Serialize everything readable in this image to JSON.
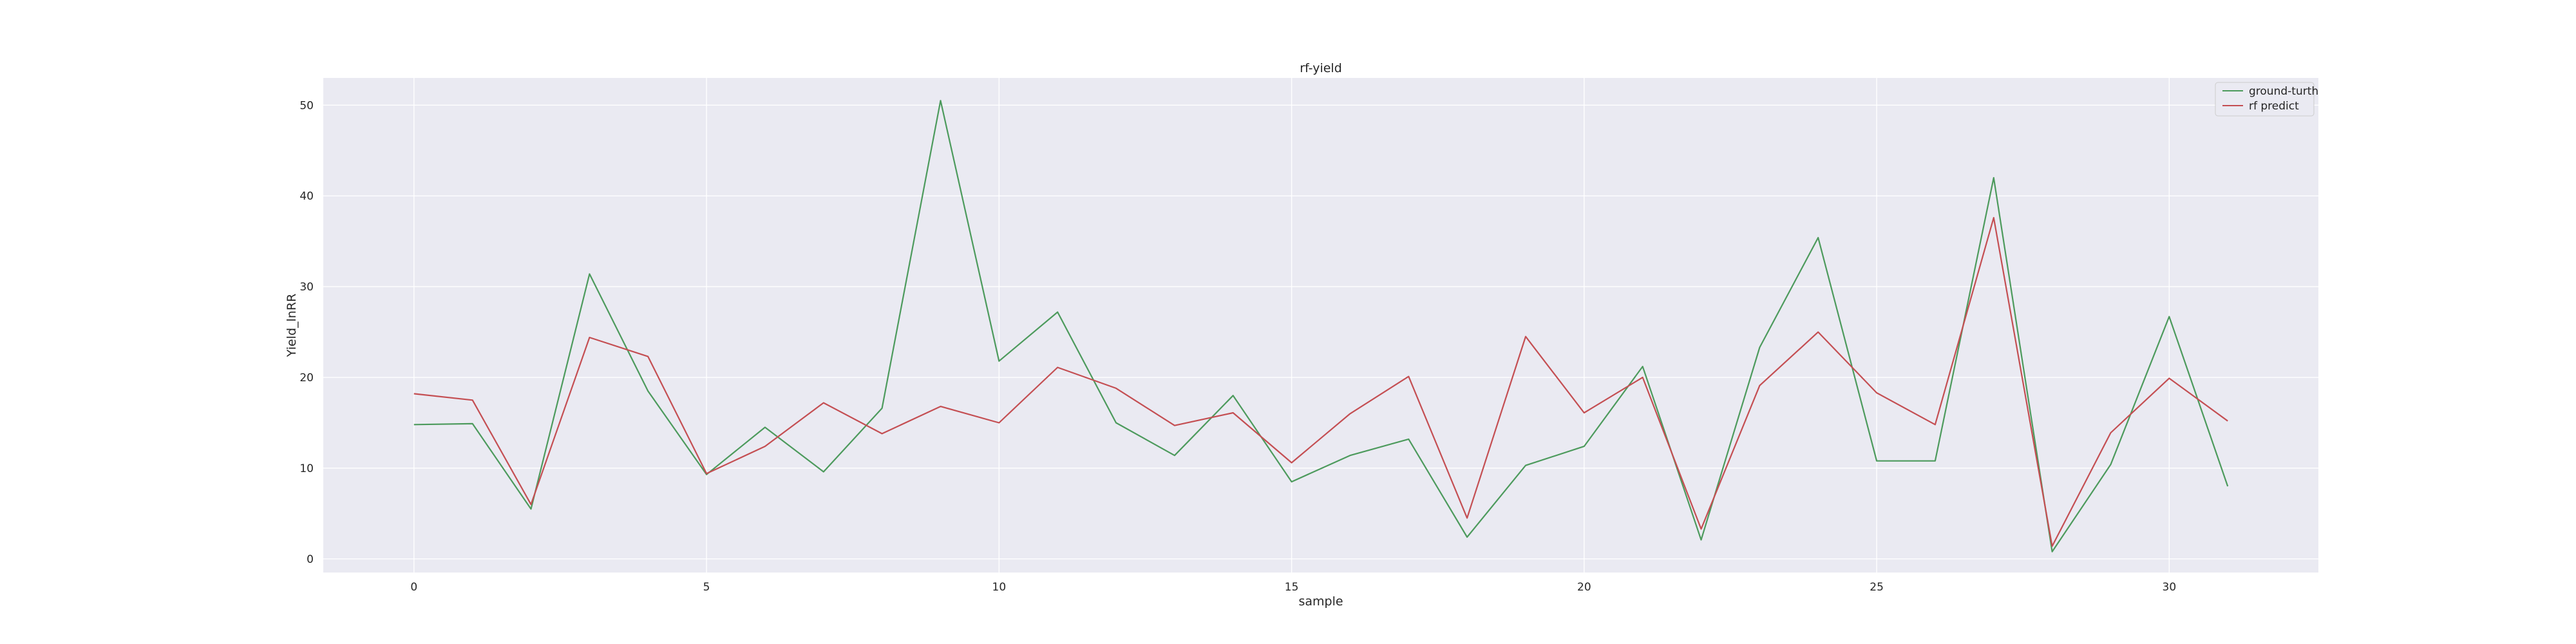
{
  "chart_data": {
    "type": "line",
    "title": "rf-yield",
    "xlabel": "sample",
    "ylabel": "Yield_lnRR",
    "xlim": [
      -1.55,
      32.55
    ],
    "ylim": [
      -1.5,
      53
    ],
    "xticks": [
      0,
      5,
      10,
      15,
      20,
      25,
      30
    ],
    "yticks": [
      0,
      10,
      20,
      30,
      40,
      50
    ],
    "grid": true,
    "background": "#eaeaf2",
    "legend_position": "top-right",
    "x": [
      0,
      1,
      2,
      3,
      4,
      5,
      6,
      7,
      8,
      9,
      10,
      11,
      12,
      13,
      14,
      15,
      16,
      17,
      18,
      19,
      20,
      21,
      22,
      23,
      24,
      25,
      26,
      27,
      28,
      29,
      30,
      31
    ],
    "series": [
      {
        "name": "ground-turth",
        "color": "#4c9a5c",
        "values": [
          14.8,
          14.9,
          5.5,
          31.4,
          18.5,
          9.3,
          14.5,
          9.6,
          16.6,
          50.5,
          21.8,
          27.2,
          15.0,
          11.4,
          18.0,
          8.5,
          11.4,
          13.2,
          2.4,
          10.3,
          12.4,
          21.2,
          2.1,
          23.3,
          35.4,
          10.8,
          10.8,
          42.0,
          0.8,
          10.4,
          26.7,
          8.0
        ]
      },
      {
        "name": "rf predict",
        "color": "#c44e52",
        "values": [
          18.2,
          17.5,
          6.0,
          24.4,
          22.3,
          9.4,
          12.4,
          17.2,
          13.8,
          16.8,
          15.0,
          21.1,
          18.8,
          14.7,
          16.1,
          10.6,
          16.0,
          20.1,
          4.5,
          24.5,
          16.1,
          20.0,
          3.3,
          19.1,
          25.0,
          18.3,
          14.8,
          37.6,
          1.4,
          13.9,
          19.9,
          15.2
        ]
      }
    ]
  }
}
